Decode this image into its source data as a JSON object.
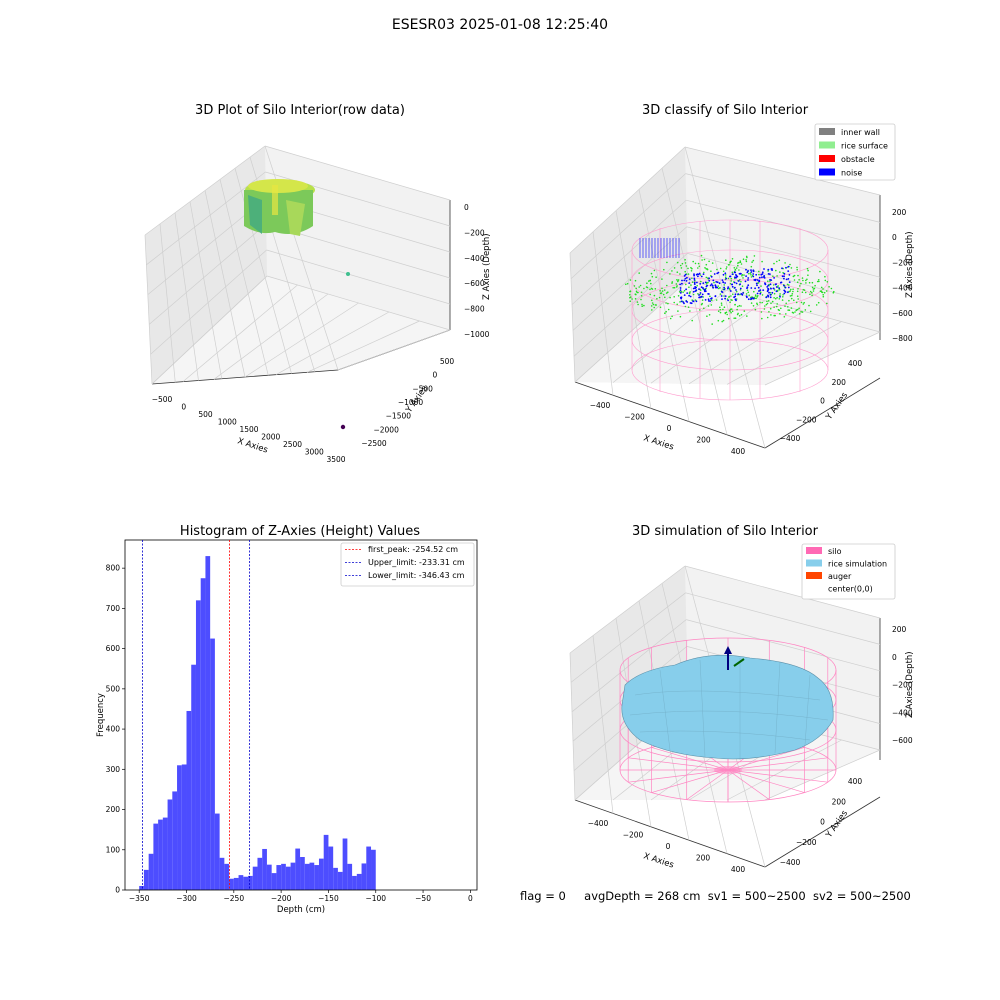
{
  "figure": {
    "suptitle": "ESESR03 2025-01-08 12:25:40",
    "status_line": {
      "flag": "flag = 0",
      "avg_depth": "avgDepth = 268 cm",
      "sv1": "sv1 = 500~2500",
      "sv2": "sv2 = 500~2500"
    }
  },
  "colors": {
    "inner_wall": "#808080",
    "rice_surface": "#90ee90",
    "obstacle": "#ff0000",
    "noise": "#0000ff",
    "silo": "#ff69b4",
    "rice_simulation": "#87ceeb",
    "auger": "#ff4500",
    "hist_bar": "#4d4dff",
    "first_peak_line": "#ff0000",
    "limit_line": "#0000cc"
  },
  "chart_data": [
    {
      "type": "scatter",
      "title": "3D Plot of Silo Interior(row data)",
      "xlabel": "X Axies",
      "ylabel": "Y Axies",
      "zlabel": "Z Axies (Depth)",
      "x_ticks": [
        "−500",
        "0",
        "500",
        "1000",
        "1500",
        "2000",
        "2500",
        "3000",
        "3500"
      ],
      "y_ticks": [
        "500",
        "0",
        "−500",
        "−1000",
        "−1500",
        "−2000",
        "−2500"
      ],
      "z_ticks": [
        "0",
        "−200",
        "−400",
        "−600",
        "−800",
        "−1000"
      ],
      "xlim": [
        -500,
        3500
      ],
      "ylim": [
        -2500,
        500
      ],
      "zlim": [
        -1000,
        0
      ],
      "grid": true,
      "outliers": [
        {
          "x": 3300,
          "y": -2400,
          "z": -1000
        },
        {
          "x": 1500,
          "y": 0,
          "z": -600
        }
      ]
    },
    {
      "type": "scatter",
      "title": "3D classify of Silo Interior",
      "xlabel": "X Axies",
      "ylabel": "Y Axies",
      "zlabel": "Z Axies (Depth)",
      "x_ticks": [
        "−400",
        "−200",
        "0",
        "200",
        "400"
      ],
      "y_ticks": [
        "400",
        "200",
        "0",
        "−200",
        "−400"
      ],
      "z_ticks": [
        "200",
        "0",
        "−200",
        "−400",
        "−600",
        "−800"
      ],
      "zlim": [
        -800,
        200
      ],
      "legend_position": "top-right",
      "legend": [
        "inner wall",
        "rice surface",
        "obstacle",
        "noise"
      ],
      "grid": true
    },
    {
      "type": "bar",
      "title": "Histogram of Z-Axies (Height) Values",
      "xlabel": "Depth (cm)",
      "ylabel": "Frequency",
      "xlim": [
        -365,
        7
      ],
      "ylim": [
        0,
        870
      ],
      "x_ticks": [
        "−350",
        "−300",
        "−250",
        "−200",
        "−150",
        "−100",
        "−50",
        "0"
      ],
      "y_ticks": [
        "0",
        "100",
        "200",
        "300",
        "400",
        "500",
        "600",
        "700",
        "800"
      ],
      "bin_width": 5,
      "bin_start": -350,
      "values": [
        10,
        50,
        90,
        165,
        175,
        180,
        225,
        245,
        310,
        312,
        445,
        560,
        720,
        775,
        830,
        625,
        190,
        80,
        65,
        28,
        30,
        37,
        33,
        35,
        58,
        80,
        102,
        63,
        42,
        62,
        65,
        58,
        68,
        103,
        82,
        65,
        68,
        62,
        78,
        137,
        108,
        55,
        45,
        128,
        65,
        35,
        40,
        66,
        108,
        100
      ],
      "legend_position": "top-right",
      "legend": [
        "first_peak: -254.52 cm",
        "Upper_limit: -233.31 cm",
        "Lower_limit: -346.43 cm"
      ],
      "first_peak": -254.52,
      "upper_limit": -233.31,
      "lower_limit": -346.43
    },
    {
      "type": "area",
      "title": "3D simulation of Silo Interior",
      "xlabel": "X Axies",
      "ylabel": "Y Axies",
      "zlabel": "Z Axies (Depth)",
      "x_ticks": [
        "−400",
        "−200",
        "0",
        "200",
        "400"
      ],
      "y_ticks": [
        "400",
        "200",
        "0",
        "−200",
        "−400"
      ],
      "z_ticks": [
        "200",
        "0",
        "−200",
        "−400",
        "−600"
      ],
      "legend_position": "top-right",
      "legend": [
        "silo",
        "rice simulation",
        "auger",
        "center(0,0)"
      ],
      "grid": true
    }
  ]
}
